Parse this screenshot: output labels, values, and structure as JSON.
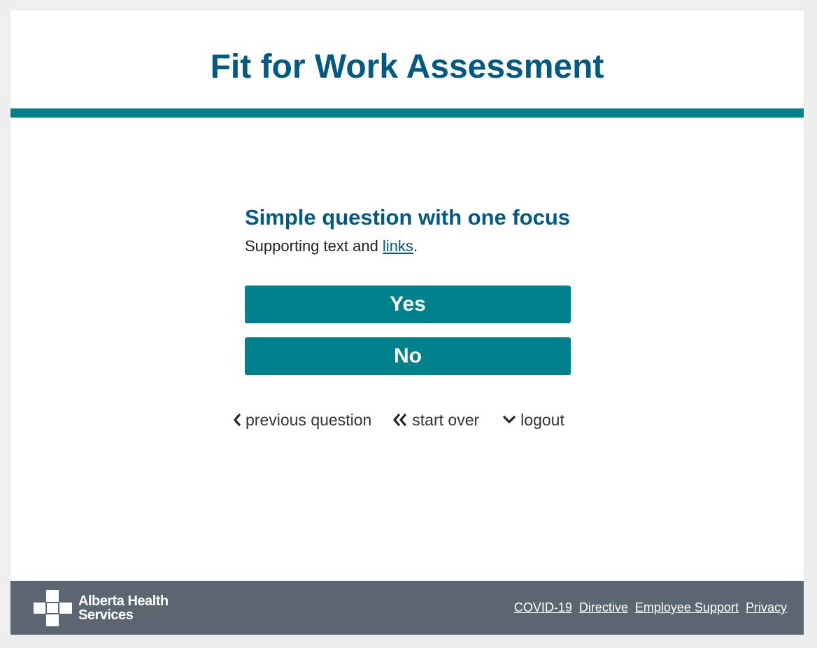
{
  "header": {
    "title": "Fit for Work Assessment"
  },
  "question": {
    "title": "Simple question with one focus",
    "support_prefix": "Supporting text and ",
    "support_link": "links",
    "support_suffix": "."
  },
  "answers": {
    "yes": "Yes",
    "no": "No"
  },
  "nav": {
    "previous": "previous question",
    "start_over": "start over",
    "logout": "logout"
  },
  "footer": {
    "logo_line1": "Alberta Health",
    "logo_line2": "Services",
    "links": [
      "COVID-19",
      "Directive",
      "Employee Support",
      "Privacy"
    ]
  },
  "colors": {
    "brand_blue": "#005a84",
    "teal": "#00818c",
    "footer_gray": "#5c6670"
  }
}
